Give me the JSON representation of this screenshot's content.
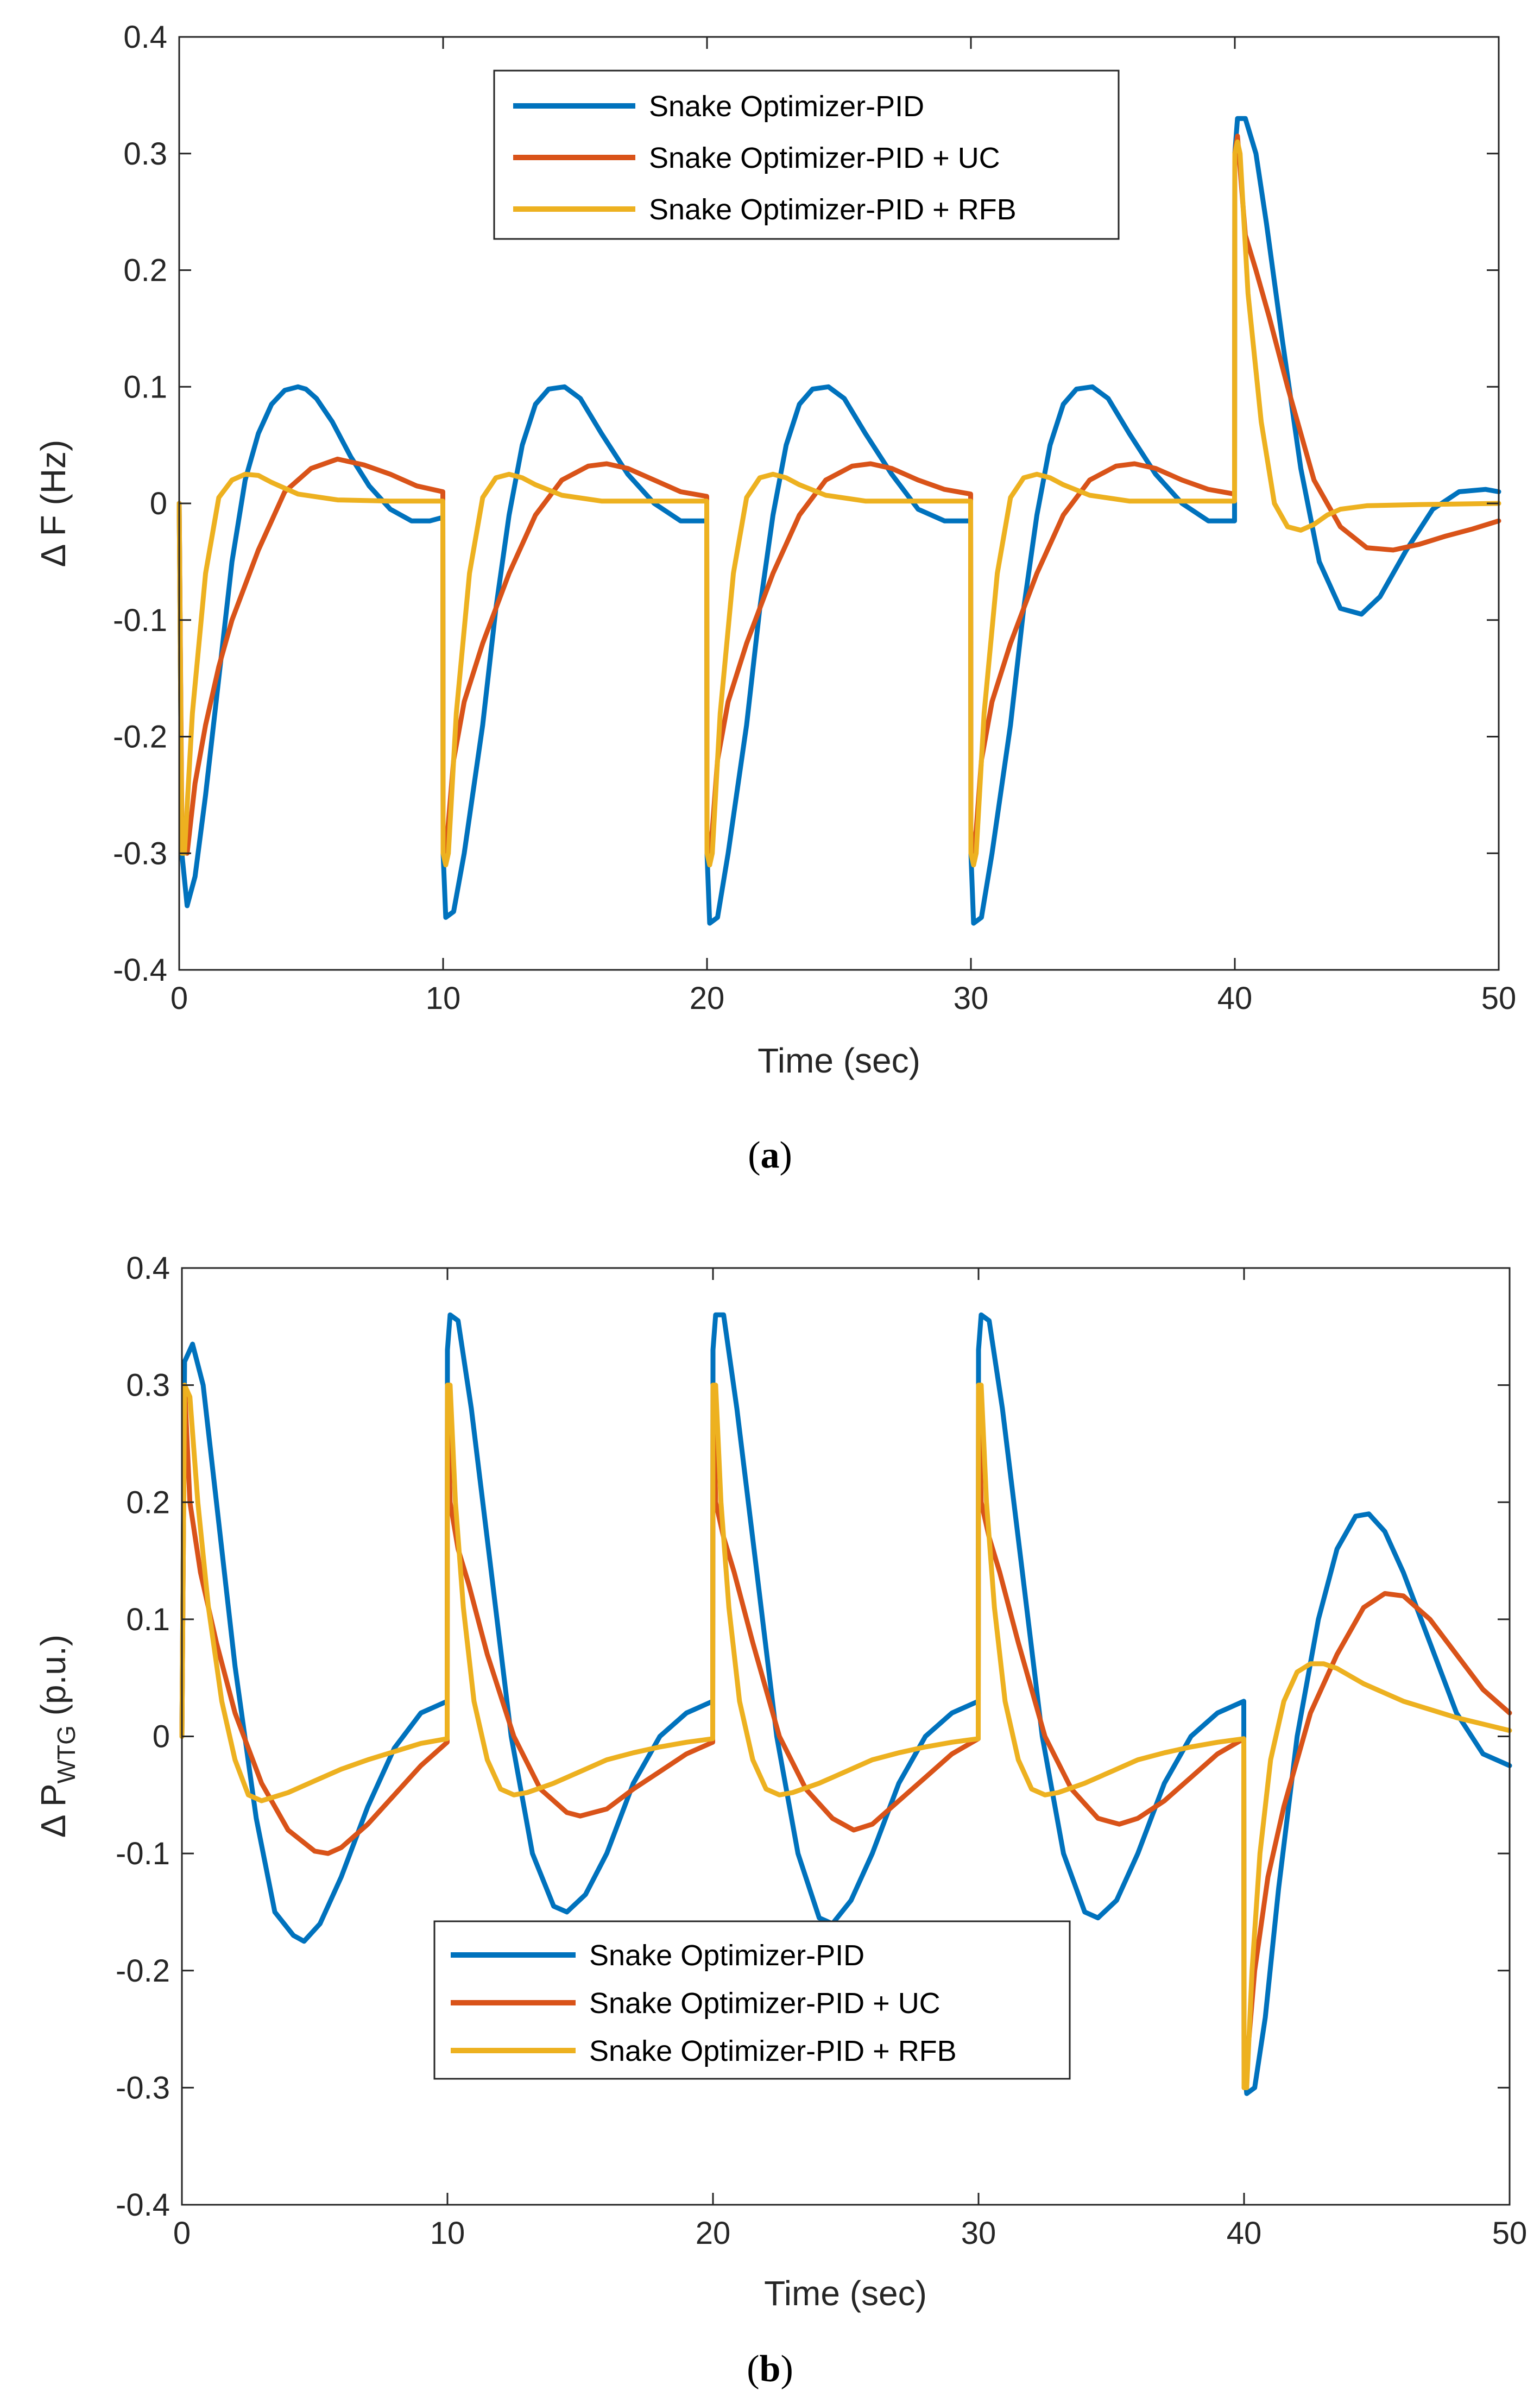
{
  "colors": {
    "pid": "#0072BD",
    "uc": "#D95319",
    "rfb": "#EDB120"
  },
  "chart_data": [
    {
      "type": "line",
      "caption_letter": "a",
      "ylabel_main": "Δ F (Hz)",
      "ylabel_sub": "",
      "xlabel": "Time (sec)",
      "xlim": [
        0,
        50
      ],
      "ylim": [
        -0.4,
        0.4
      ],
      "xticks": [
        0,
        10,
        20,
        30,
        40,
        50
      ],
      "xtick_labels": [
        "0",
        "10",
        "20",
        "30",
        "40",
        "50"
      ],
      "yticks": [
        -0.4,
        -0.3,
        -0.2,
        -0.1,
        0,
        0.1,
        0.2,
        0.3,
        0.4
      ],
      "ytick_labels": [
        "-0.4",
        "-0.3",
        "-0.2",
        "-0.1",
        "0",
        "0.1",
        "0.2",
        "0.3",
        "0.4"
      ],
      "grid": false,
      "legend_position": "top-center",
      "series": [
        {
          "name": "Snake Optimizer-PID",
          "color": "#0072BD",
          "x": [
            0,
            0.1,
            0.3,
            0.6,
            1,
            1.5,
            2,
            2.5,
            3,
            3.5,
            4,
            4.5,
            4.8,
            5.2,
            5.8,
            6.5,
            7.2,
            8,
            8.8,
            9.5,
            9.99,
            10,
            10.1,
            10.4,
            10.8,
            11.5,
            12,
            12.5,
            13,
            13.5,
            14,
            14.6,
            15.2,
            16,
            17,
            18,
            19,
            19.99,
            20,
            20.1,
            20.4,
            20.8,
            21.5,
            22,
            22.5,
            23,
            23.5,
            24,
            24.6,
            25.2,
            26,
            27,
            28,
            29,
            29.99,
            30,
            30.1,
            30.4,
            30.8,
            31.5,
            32,
            32.5,
            33,
            33.5,
            34,
            34.6,
            35.2,
            36,
            37,
            38,
            39,
            39.99,
            40,
            40.1,
            40.4,
            40.8,
            41.2,
            41.8,
            42.5,
            43.2,
            44,
            44.8,
            45.5,
            46.5,
            47.5,
            48.5,
            49.5,
            50
          ],
          "y": [
            0,
            -0.3,
            -0.345,
            -0.32,
            -0.25,
            -0.15,
            -0.05,
            0.02,
            0.06,
            0.085,
            0.097,
            0.1,
            0.098,
            0.09,
            0.07,
            0.04,
            0.015,
            -0.005,
            -0.015,
            -0.015,
            -0.012,
            -0.3,
            -0.355,
            -0.35,
            -0.3,
            -0.19,
            -0.09,
            -0.01,
            0.05,
            0.085,
            0.098,
            0.1,
            0.09,
            0.06,
            0.025,
            0.0,
            -0.015,
            -0.015,
            -0.3,
            -0.36,
            -0.355,
            -0.3,
            -0.19,
            -0.09,
            -0.01,
            0.05,
            0.085,
            0.098,
            0.1,
            0.09,
            0.06,
            0.025,
            -0.005,
            -0.015,
            -0.015,
            -0.3,
            -0.36,
            -0.355,
            -0.3,
            -0.19,
            -0.09,
            -0.01,
            0.05,
            0.085,
            0.098,
            0.1,
            0.09,
            0.06,
            0.025,
            0.0,
            -0.015,
            -0.015,
            0.3,
            0.33,
            0.33,
            0.3,
            0.24,
            0.14,
            0.03,
            -0.05,
            -0.09,
            -0.095,
            -0.08,
            -0.04,
            -0.005,
            0.01,
            0.012,
            0.01
          ]
        },
        {
          "name": "Snake Optimizer-PID + UC",
          "color": "#D95319",
          "x": [
            0,
            0.1,
            0.3,
            0.6,
            1,
            1.5,
            2,
            3,
            4,
            5,
            6,
            7,
            8,
            9,
            9.99,
            10,
            10.1,
            10.4,
            10.8,
            11.5,
            12.5,
            13.5,
            14.5,
            15.5,
            16.2,
            17,
            18,
            19,
            19.99,
            20,
            20.1,
            20.4,
            20.8,
            21.5,
            22.5,
            23.5,
            24.5,
            25.5,
            26.2,
            27,
            28,
            29,
            29.99,
            30,
            30.1,
            30.4,
            30.8,
            31.5,
            32.5,
            33.5,
            34.5,
            35.5,
            36.2,
            37,
            38,
            39,
            39.99,
            40,
            40.1,
            40.4,
            40.8,
            41.3,
            42,
            43,
            44,
            45,
            46,
            47,
            48,
            49,
            50
          ],
          "y": [
            0,
            -0.28,
            -0.3,
            -0.24,
            -0.19,
            -0.14,
            -0.1,
            -0.04,
            0.01,
            0.03,
            0.038,
            0.033,
            0.025,
            0.015,
            0.01,
            -0.28,
            -0.3,
            -0.22,
            -0.17,
            -0.12,
            -0.06,
            -0.01,
            0.02,
            0.032,
            0.034,
            0.03,
            0.02,
            0.01,
            0.006,
            -0.28,
            -0.31,
            -0.22,
            -0.17,
            -0.12,
            -0.06,
            -0.01,
            0.02,
            0.032,
            0.034,
            0.03,
            0.02,
            0.012,
            0.008,
            -0.28,
            -0.31,
            -0.22,
            -0.17,
            -0.12,
            -0.06,
            -0.01,
            0.02,
            0.032,
            0.034,
            0.03,
            0.02,
            0.012,
            0.008,
            0.3,
            0.315,
            0.23,
            0.2,
            0.16,
            0.1,
            0.02,
            -0.02,
            -0.038,
            -0.04,
            -0.035,
            -0.028,
            -0.022,
            -0.015
          ]
        },
        {
          "name": "Snake Optimizer-PID + RFB",
          "color": "#EDB120",
          "x": [
            0,
            0.1,
            0.2,
            0.5,
            1,
            1.5,
            2,
            2.5,
            3,
            3.5,
            4.5,
            6,
            8,
            9.99,
            10,
            10.1,
            10.2,
            10.5,
            11,
            11.5,
            12,
            12.5,
            13,
            13.5,
            14.5,
            16,
            18,
            19.99,
            20,
            20.1,
            20.2,
            20.5,
            21,
            21.5,
            22,
            22.5,
            23,
            23.5,
            24.5,
            26,
            28,
            29.99,
            30,
            30.1,
            30.2,
            30.5,
            31,
            31.5,
            32,
            32.5,
            33,
            33.5,
            34.5,
            36,
            38,
            39.99,
            40,
            40.1,
            40.2,
            40.5,
            41,
            41.5,
            42,
            42.5,
            43,
            43.5,
            44,
            45,
            47,
            50
          ],
          "y": [
            0,
            -0.3,
            -0.3,
            -0.18,
            -0.06,
            0.005,
            0.02,
            0.025,
            0.024,
            0.018,
            0.008,
            0.003,
            0.002,
            0.002,
            -0.3,
            -0.31,
            -0.3,
            -0.18,
            -0.06,
            0.005,
            0.022,
            0.025,
            0.022,
            0.016,
            0.007,
            0.002,
            0.002,
            0.002,
            -0.3,
            -0.31,
            -0.3,
            -0.18,
            -0.06,
            0.005,
            0.022,
            0.025,
            0.022,
            0.016,
            0.007,
            0.002,
            0.002,
            0.002,
            -0.3,
            -0.31,
            -0.3,
            -0.18,
            -0.06,
            0.005,
            0.022,
            0.025,
            0.022,
            0.016,
            0.007,
            0.002,
            0.002,
            0.002,
            0.3,
            0.31,
            0.3,
            0.18,
            0.07,
            0.0,
            -0.02,
            -0.023,
            -0.018,
            -0.01,
            -0.005,
            -0.002,
            -0.001,
            0.0
          ]
        }
      ]
    },
    {
      "type": "line",
      "caption_letter": "b",
      "ylabel_main": "Δ P",
      "ylabel_sub": "WTG",
      "ylabel_after": " (p.u.)",
      "xlabel": "Time (sec)",
      "xlim": [
        0,
        50
      ],
      "ylim": [
        -0.4,
        0.4
      ],
      "xticks": [
        0,
        10,
        20,
        30,
        40,
        50
      ],
      "xtick_labels": [
        "0",
        "10",
        "20",
        "30",
        "40",
        "50"
      ],
      "yticks": [
        -0.4,
        -0.3,
        -0.2,
        -0.1,
        0,
        0.1,
        0.2,
        0.3,
        0.4
      ],
      "ytick_labels": [
        "-0.4",
        "-0.3",
        "-0.2",
        "-0.1",
        "0",
        "0.1",
        "0.2",
        "0.3",
        "0.4"
      ],
      "grid": false,
      "legend_position": "bottom-center",
      "series": [
        {
          "name": "Snake Optimizer-PID",
          "color": "#0072BD",
          "x": [
            0,
            0.1,
            0.4,
            0.8,
            1.3,
            2,
            2.8,
            3.5,
            4.2,
            4.6,
            5.2,
            6,
            7,
            8,
            9,
            9.99,
            10,
            10.1,
            10.4,
            10.9,
            11.6,
            12.4,
            13.2,
            14,
            14.5,
            15.2,
            16,
            17,
            18,
            19,
            19.99,
            20,
            20.1,
            20.4,
            20.9,
            21.6,
            22.4,
            23.2,
            24,
            24.5,
            25.2,
            26,
            27,
            28,
            29,
            29.99,
            30,
            30.1,
            30.4,
            30.9,
            31.6,
            32.4,
            33.2,
            34,
            34.5,
            35.2,
            36,
            37,
            38,
            39,
            39.99,
            40,
            40.1,
            40.4,
            40.8,
            41.3,
            42,
            42.8,
            43.5,
            44.2,
            44.7,
            45.3,
            46,
            47,
            48,
            49,
            50
          ],
          "y": [
            0,
            0.32,
            0.335,
            0.3,
            0.2,
            0.06,
            -0.07,
            -0.15,
            -0.17,
            -0.175,
            -0.16,
            -0.12,
            -0.06,
            -0.01,
            0.02,
            0.03,
            0.33,
            0.36,
            0.355,
            0.28,
            0.15,
            0.0,
            -0.1,
            -0.145,
            -0.15,
            -0.135,
            -0.1,
            -0.04,
            0.0,
            0.02,
            0.03,
            0.33,
            0.36,
            0.36,
            0.28,
            0.15,
            0.0,
            -0.1,
            -0.155,
            -0.16,
            -0.14,
            -0.1,
            -0.04,
            0.0,
            0.02,
            0.03,
            0.33,
            0.36,
            0.355,
            0.28,
            0.15,
            0.0,
            -0.1,
            -0.15,
            -0.155,
            -0.14,
            -0.1,
            -0.04,
            0.0,
            0.02,
            0.03,
            -0.28,
            -0.305,
            -0.3,
            -0.24,
            -0.13,
            0.0,
            0.1,
            0.16,
            0.188,
            0.19,
            0.175,
            0.14,
            0.08,
            0.02,
            -0.015,
            -0.025
          ]
        },
        {
          "name": "Snake Optimizer-PID + UC",
          "color": "#D95319",
          "x": [
            0,
            0.1,
            0.3,
            0.7,
            1.3,
            2,
            3,
            4,
            5,
            5.5,
            6,
            7,
            8,
            9,
            9.99,
            10,
            10.1,
            10.4,
            10.8,
            11.5,
            12.5,
            13.5,
            14.5,
            15,
            16,
            17,
            18,
            19,
            19.99,
            20,
            20.1,
            20.4,
            20.8,
            21.5,
            22.5,
            23.5,
            24.5,
            25.3,
            26,
            27,
            28,
            29,
            29.99,
            30,
            30.1,
            30.4,
            30.8,
            31.5,
            32.5,
            33.5,
            34.5,
            35.3,
            36,
            37,
            38,
            39,
            39.99,
            40,
            40.1,
            40.4,
            40.9,
            41.5,
            42.5,
            43.5,
            44.5,
            45.3,
            46,
            47,
            48,
            49,
            50
          ],
          "y": [
            0,
            0.3,
            0.2,
            0.14,
            0.08,
            0.02,
            -0.04,
            -0.08,
            -0.098,
            -0.1,
            -0.095,
            -0.075,
            -0.05,
            -0.025,
            -0.005,
            0.3,
            0.2,
            0.16,
            0.13,
            0.07,
            0.0,
            -0.045,
            -0.065,
            -0.068,
            -0.062,
            -0.045,
            -0.03,
            -0.015,
            -0.005,
            0.3,
            0.2,
            0.17,
            0.14,
            0.08,
            0.0,
            -0.045,
            -0.07,
            -0.08,
            -0.075,
            -0.055,
            -0.035,
            -0.015,
            -0.002,
            0.3,
            0.2,
            0.17,
            0.14,
            0.08,
            0.0,
            -0.045,
            -0.07,
            -0.075,
            -0.07,
            -0.055,
            -0.035,
            -0.015,
            -0.002,
            -0.3,
            -0.28,
            -0.2,
            -0.12,
            -0.06,
            0.02,
            0.07,
            0.11,
            0.122,
            0.12,
            0.1,
            0.07,
            0.04,
            0.02
          ]
        },
        {
          "name": "Snake Optimizer-PID + RFB",
          "color": "#EDB120",
          "x": [
            0,
            0.1,
            0.3,
            0.6,
            1,
            1.5,
            2,
            2.5,
            3,
            4,
            5,
            6,
            7,
            8,
            9,
            9.99,
            10,
            10.1,
            10.3,
            10.6,
            11,
            11.5,
            12,
            12.5,
            13,
            14,
            15,
            16,
            17,
            18,
            19,
            19.99,
            20,
            20.1,
            20.3,
            20.6,
            21,
            21.5,
            22,
            22.5,
            23,
            24,
            25,
            26,
            27,
            28,
            29,
            29.99,
            30,
            30.1,
            30.3,
            30.6,
            31,
            31.5,
            32,
            32.5,
            33,
            34,
            35,
            36,
            37,
            38,
            39,
            39.99,
            40,
            40.1,
            40.3,
            40.6,
            41,
            41.5,
            42,
            42.5,
            43,
            43.5,
            44.5,
            46,
            48,
            50
          ],
          "y": [
            0,
            0.3,
            0.29,
            0.2,
            0.11,
            0.03,
            -0.02,
            -0.05,
            -0.055,
            -0.048,
            -0.038,
            -0.028,
            -0.02,
            -0.013,
            -0.006,
            -0.002,
            0.3,
            0.3,
            0.2,
            0.11,
            0.03,
            -0.02,
            -0.045,
            -0.05,
            -0.048,
            -0.04,
            -0.03,
            -0.02,
            -0.014,
            -0.009,
            -0.005,
            -0.002,
            0.3,
            0.3,
            0.2,
            0.11,
            0.03,
            -0.02,
            -0.045,
            -0.05,
            -0.048,
            -0.04,
            -0.03,
            -0.02,
            -0.014,
            -0.009,
            -0.005,
            -0.002,
            0.3,
            0.3,
            0.2,
            0.11,
            0.03,
            -0.02,
            -0.045,
            -0.05,
            -0.048,
            -0.04,
            -0.03,
            -0.02,
            -0.014,
            -0.009,
            -0.005,
            -0.002,
            -0.3,
            -0.3,
            -0.2,
            -0.1,
            -0.02,
            0.03,
            0.055,
            0.062,
            0.062,
            0.058,
            0.045,
            0.03,
            0.016,
            0.005
          ]
        }
      ]
    }
  ]
}
